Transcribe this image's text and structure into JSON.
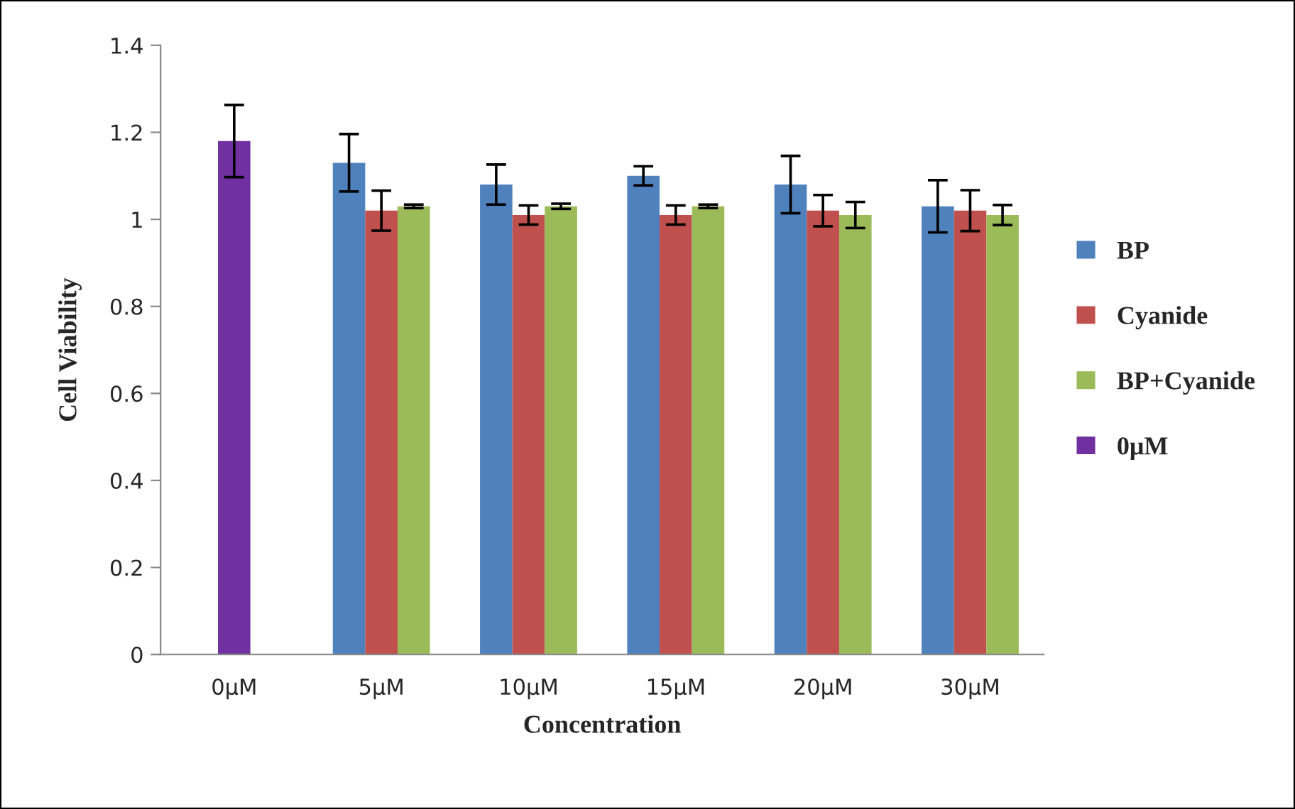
{
  "chart_data": {
    "type": "bar",
    "xlabel": "Concentration",
    "ylabel": "Cell Viability",
    "categories": [
      "0μM",
      "5μM",
      "10μM",
      "15μM",
      "20μM",
      "30μM"
    ],
    "series": [
      {
        "name": "BP",
        "color": "#4f81bd",
        "values": [
          null,
          1.13,
          1.08,
          1.1,
          1.08,
          1.03
        ],
        "errors": [
          null,
          0.066,
          0.046,
          0.022,
          0.066,
          0.06
        ]
      },
      {
        "name": "Cyanide",
        "color": "#c0504d",
        "values": [
          null,
          1.02,
          1.01,
          1.01,
          1.02,
          1.02
        ],
        "errors": [
          null,
          0.046,
          0.022,
          0.022,
          0.036,
          0.047
        ]
      },
      {
        "name": "BP+Cyanide",
        "color": "#9bbb59",
        "values": [
          null,
          1.03,
          1.03,
          1.03,
          1.01,
          1.01
        ],
        "errors": [
          null,
          0.004,
          0.006,
          0.004,
          0.03,
          0.023
        ]
      },
      {
        "name": "0μM",
        "color": "#7030a0",
        "values": [
          1.18,
          null,
          null,
          null,
          null,
          null
        ],
        "errors": [
          0.083,
          null,
          null,
          null,
          null,
          null
        ]
      }
    ],
    "ylim": [
      0,
      1.4
    ],
    "yticks": [
      0,
      0.2,
      0.4,
      0.6,
      0.8,
      1,
      1.2,
      1.4
    ],
    "legend": "right",
    "grid": false
  }
}
